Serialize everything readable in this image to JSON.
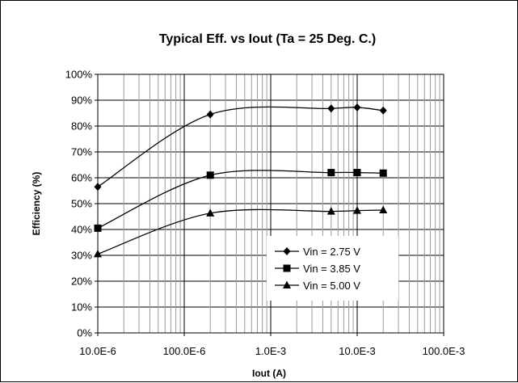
{
  "chart_data": {
    "type": "line",
    "title": "Typical Eff. vs Iout (Ta = 25 Deg. C.)",
    "xlabel": "Iout (A)",
    "ylabel": "Efficiency (%)",
    "x_scale": "log",
    "xlim": [
      1e-05,
      0.1
    ],
    "ylim": [
      0,
      100
    ],
    "x_tick_values": [
      1e-05,
      0.0001,
      0.001,
      0.01,
      0.1
    ],
    "x_tick_labels": [
      "10.0E-6",
      "100.0E-6",
      "1.0E-3",
      "10.0E-3",
      "100.0E-3"
    ],
    "y_tick_values": [
      0,
      10,
      20,
      30,
      40,
      50,
      60,
      70,
      80,
      90,
      100
    ],
    "y_tick_labels": [
      "0%",
      "10%",
      "20%",
      "30%",
      "40%",
      "50%",
      "60%",
      "70%",
      "80%",
      "90%",
      "100%"
    ],
    "grid": true,
    "legend_position": "bottom-right",
    "series": [
      {
        "name": "Vin = 2.75 V",
        "marker": "diamond",
        "color": "#000000",
        "x": [
          1e-05,
          0.0002,
          0.005,
          0.01,
          0.02
        ],
        "y": [
          56.5,
          84.5,
          86.8,
          87.2,
          86.0
        ]
      },
      {
        "name": "Vin = 3.85 V",
        "marker": "square",
        "color": "#000000",
        "x": [
          1e-05,
          0.0002,
          0.005,
          0.01,
          0.02
        ],
        "y": [
          40.5,
          61.0,
          62.0,
          62.0,
          61.8
        ]
      },
      {
        "name": "Vin = 5.00 V",
        "marker": "triangle",
        "color": "#000000",
        "x": [
          1e-05,
          0.0002,
          0.005,
          0.01,
          0.02
        ],
        "y": [
          30.5,
          46.3,
          47.0,
          47.3,
          47.5
        ]
      }
    ]
  }
}
